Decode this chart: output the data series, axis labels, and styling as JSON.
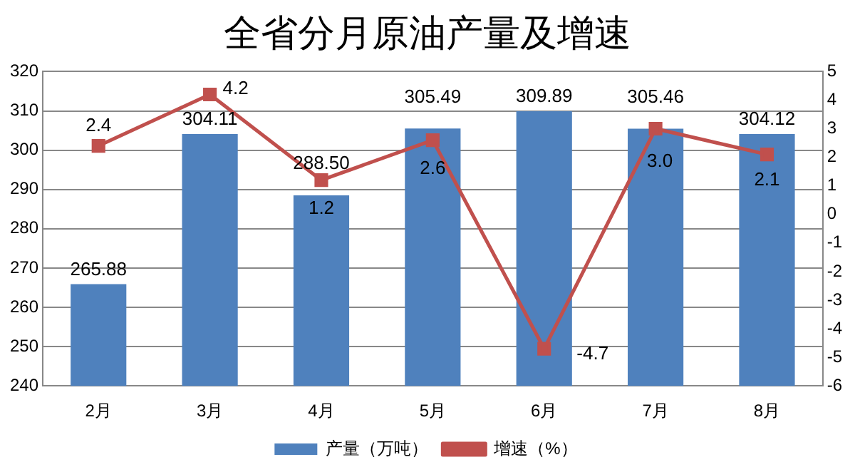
{
  "chart_data": {
    "type": "bar",
    "title": "全省分月原油产量及增速",
    "categories": [
      "2月",
      "3月",
      "4月",
      "5月",
      "6月",
      "7月",
      "8月"
    ],
    "series": [
      {
        "name": "产量（万吨）",
        "color": "#4f81bd",
        "values": [
          265.88,
          304.11,
          288.5,
          305.49,
          309.89,
          305.46,
          304.12
        ],
        "value_labels": [
          "265.88",
          "304.11",
          "288.50",
          "305.49",
          "309.89",
          "305.46",
          "304.12"
        ]
      },
      {
        "name": "增速（%）",
        "type": "line",
        "axis": "y2",
        "color": "#c0504d",
        "marker": "square",
        "values": [
          2.4,
          4.2,
          1.2,
          2.6,
          -4.7,
          3.0,
          2.1
        ],
        "value_labels": [
          "2.4",
          "4.2",
          "1.2",
          "2.6",
          "-4.7",
          "3.0",
          "2.1"
        ]
      }
    ],
    "ylim": [
      240,
      320
    ],
    "yticks": [
      240,
      250,
      260,
      270,
      280,
      290,
      300,
      310,
      320
    ],
    "y2lim": [
      -6,
      5
    ],
    "y2ticks": [
      -6,
      -5,
      -4,
      -3,
      -2,
      -1,
      0,
      1,
      2,
      3,
      4,
      5
    ],
    "grid": "y",
    "legend": "bottom"
  }
}
